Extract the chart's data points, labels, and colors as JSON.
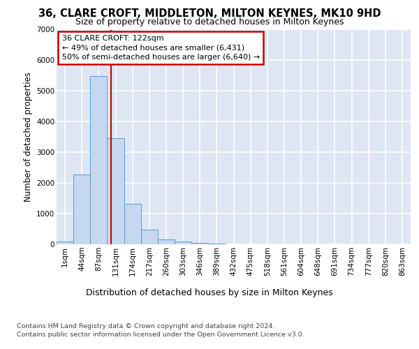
{
  "title": "36, CLARE CROFT, MIDDLETON, MILTON KEYNES, MK10 9HD",
  "subtitle": "Size of property relative to detached houses in Milton Keynes",
  "xlabel": "Distribution of detached houses by size in Milton Keynes",
  "ylabel": "Number of detached properties",
  "footer_line1": "Contains HM Land Registry data © Crown copyright and database right 2024.",
  "footer_line2": "Contains public sector information licensed under the Open Government Licence v3.0.",
  "annotation_line1": "36 CLARE CROFT: 122sqm",
  "annotation_line2": "← 49% of detached houses are smaller (6,431)",
  "annotation_line3": "50% of semi-detached houses are larger (6,640) →",
  "bar_color": "#c5d8f0",
  "bar_edge_color": "#5b9bd5",
  "red_line_color": "#cc0000",
  "plot_bg_color": "#dde6f2",
  "grid_color": "#ffffff",
  "categories": [
    "1sqm",
    "44sqm",
    "87sqm",
    "131sqm",
    "174sqm",
    "217sqm",
    "260sqm",
    "303sqm",
    "346sqm",
    "389sqm",
    "432sqm",
    "475sqm",
    "518sqm",
    "561sqm",
    "604sqm",
    "648sqm",
    "691sqm",
    "734sqm",
    "777sqm",
    "820sqm",
    "863sqm"
  ],
  "values": [
    80,
    2280,
    5480,
    3450,
    1310,
    470,
    155,
    95,
    55,
    25,
    0,
    0,
    0,
    0,
    0,
    0,
    0,
    0,
    0,
    0,
    0
  ],
  "red_line_x": 2.72,
  "ylim_max": 7000,
  "yticks": [
    0,
    1000,
    2000,
    3000,
    4000,
    5000,
    6000,
    7000
  ],
  "title_fontsize": 10.5,
  "subtitle_fontsize": 9,
  "ylabel_fontsize": 8.5,
  "xlabel_fontsize": 9,
  "tick_fontsize": 7.5,
  "footer_fontsize": 6.8,
  "annot_fontsize": 8
}
